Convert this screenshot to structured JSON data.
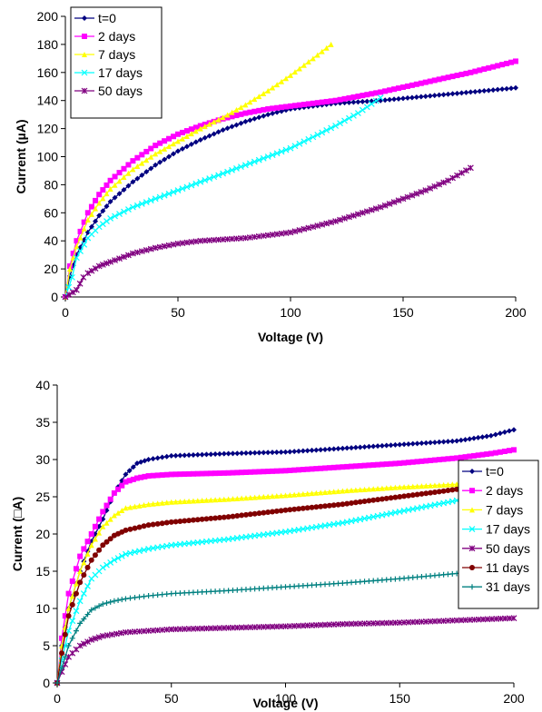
{
  "chart_data": [
    {
      "type": "line",
      "xlabel": "Voltage (V)",
      "ylabel": "Current (µA)",
      "xlim": [
        0,
        200
      ],
      "ylim": [
        0,
        200
      ],
      "xticks": [
        0,
        50,
        100,
        150,
        200
      ],
      "yticks": [
        0,
        20,
        40,
        60,
        80,
        100,
        120,
        140,
        160,
        180,
        200
      ],
      "grid": false,
      "legend_position": "top-left",
      "series": [
        {
          "name": "t=0",
          "color": "#000080",
          "marker": "diamond",
          "x": [
            0,
            2,
            5,
            10,
            15,
            20,
            30,
            40,
            50,
            60,
            70,
            80,
            90,
            100,
            120,
            140,
            160,
            180,
            200
          ],
          "y": [
            0,
            15,
            30,
            46,
            58,
            68,
            82,
            94,
            104,
            112,
            119,
            125,
            130,
            134,
            138,
            140,
            143,
            146,
            149
          ]
        },
        {
          "name": "2 days",
          "color": "#FF00FF",
          "marker": "square",
          "x": [
            0,
            2,
            5,
            10,
            15,
            20,
            30,
            40,
            50,
            60,
            70,
            80,
            90,
            100,
            120,
            140,
            160,
            180,
            200
          ],
          "y": [
            0,
            22,
            40,
            60,
            73,
            83,
            97,
            108,
            116,
            122,
            127,
            131,
            134,
            136,
            140,
            146,
            153,
            160,
            168
          ]
        },
        {
          "name": "7 days",
          "color": "#FFFF00",
          "marker": "triangle",
          "x": [
            0,
            2,
            5,
            10,
            15,
            20,
            30,
            40,
            50,
            60,
            70,
            80,
            90,
            100,
            110,
            118
          ],
          "y": [
            0,
            20,
            36,
            55,
            67,
            77,
            91,
            102,
            111,
            120,
            128,
            137,
            147,
            158,
            170,
            180
          ]
        },
        {
          "name": "17 days",
          "color": "#00FFFF",
          "marker": "x",
          "x": [
            0,
            3,
            5,
            10,
            15,
            20,
            30,
            40,
            50,
            60,
            70,
            80,
            90,
            100,
            110,
            120,
            130,
            140
          ],
          "y": [
            0,
            14,
            28,
            42,
            50,
            56,
            64,
            70,
            76,
            82,
            88,
            94,
            100,
            106,
            114,
            122,
            131,
            142
          ]
        },
        {
          "name": "50 days",
          "color": "#800080",
          "marker": "star",
          "x": [
            0,
            5,
            8,
            10,
            15,
            20,
            30,
            40,
            50,
            60,
            70,
            80,
            90,
            100,
            110,
            120,
            130,
            140,
            150,
            160,
            170,
            180
          ],
          "y": [
            0,
            5,
            14,
            17,
            22,
            25,
            31,
            35,
            38,
            40,
            41,
            42,
            44,
            46,
            50,
            54,
            59,
            64,
            70,
            76,
            83,
            92
          ]
        }
      ]
    },
    {
      "type": "line",
      "xlabel": "Voltage (V)",
      "ylabel": "Current (□A)",
      "xlim": [
        0,
        200
      ],
      "ylim": [
        0,
        40
      ],
      "xticks": [
        0,
        50,
        100,
        150,
        200
      ],
      "yticks": [
        0,
        5,
        10,
        15,
        20,
        25,
        30,
        35,
        40
      ],
      "grid": false,
      "legend_position": "right",
      "series": [
        {
          "name": "t=0",
          "color": "#000080",
          "marker": "diamond",
          "x": [
            0,
            2,
            5,
            10,
            15,
            20,
            25,
            30,
            35,
            40,
            50,
            75,
            100,
            125,
            150,
            175,
            190,
            200
          ],
          "y": [
            0,
            5,
            10,
            15,
            19,
            22,
            25.5,
            28,
            29.5,
            30,
            30.5,
            30.8,
            31,
            31.5,
            32,
            32.5,
            33.2,
            34
          ]
        },
        {
          "name": "2 days",
          "color": "#FF00FF",
          "marker": "square",
          "x": [
            0,
            2,
            5,
            10,
            15,
            20,
            25,
            30,
            35,
            40,
            50,
            75,
            100,
            125,
            150,
            175,
            190,
            200
          ],
          "y": [
            0,
            6,
            12,
            17,
            20,
            23,
            25.5,
            27,
            27.5,
            27.8,
            28,
            28.2,
            28.5,
            29,
            29.5,
            30.2,
            30.8,
            31.3
          ]
        },
        {
          "name": "7 days",
          "color": "#FFFF00",
          "marker": "triangle",
          "x": [
            0,
            2,
            5,
            10,
            15,
            20,
            25,
            30,
            40,
            50,
            75,
            100,
            125,
            150,
            175,
            190,
            200
          ],
          "y": [
            0,
            5,
            10,
            15,
            18.5,
            21,
            22.5,
            23.5,
            24,
            24.3,
            24.7,
            25.2,
            25.8,
            26.3,
            26.7,
            27,
            27.5
          ]
        },
        {
          "name": "17 days",
          "color": "#00FFFF",
          "marker": "x",
          "x": [
            0,
            2,
            5,
            10,
            15,
            20,
            25,
            30,
            40,
            50,
            75,
            100,
            125,
            150,
            175,
            190,
            200
          ],
          "y": [
            0,
            3,
            7,
            11,
            14,
            15.5,
            16.5,
            17.3,
            18,
            18.5,
            19.3,
            20.3,
            21.5,
            23,
            24.5,
            25.3,
            26
          ]
        },
        {
          "name": "50 days",
          "color": "#800080",
          "marker": "star",
          "x": [
            0,
            2,
            5,
            10,
            15,
            20,
            30,
            40,
            50,
            75,
            100,
            125,
            150,
            175,
            200
          ],
          "y": [
            0,
            1.5,
            3.5,
            5,
            5.8,
            6.3,
            6.8,
            7,
            7.2,
            7.4,
            7.6,
            7.9,
            8.1,
            8.4,
            8.7
          ]
        },
        {
          "name": "11 days",
          "color": "#800000",
          "marker": "circle",
          "x": [
            0,
            2,
            5,
            10,
            15,
            20,
            25,
            30,
            40,
            50,
            75,
            100,
            125,
            150,
            175,
            190,
            200
          ],
          "y": [
            0,
            4,
            9,
            13.5,
            16.5,
            18.5,
            19.8,
            20.5,
            21.2,
            21.6,
            22.3,
            23.2,
            24,
            25,
            26,
            26.7,
            27.2
          ]
        },
        {
          "name": "31 days",
          "color": "#008080",
          "marker": "plus",
          "x": [
            0,
            2,
            5,
            10,
            15,
            20,
            25,
            30,
            40,
            50,
            75,
            100,
            125,
            150,
            175,
            200
          ],
          "y": [
            0,
            2,
            5,
            8,
            9.8,
            10.6,
            11,
            11.3,
            11.7,
            12,
            12.4,
            12.9,
            13.4,
            14,
            14.7,
            15.6
          ]
        }
      ]
    }
  ]
}
